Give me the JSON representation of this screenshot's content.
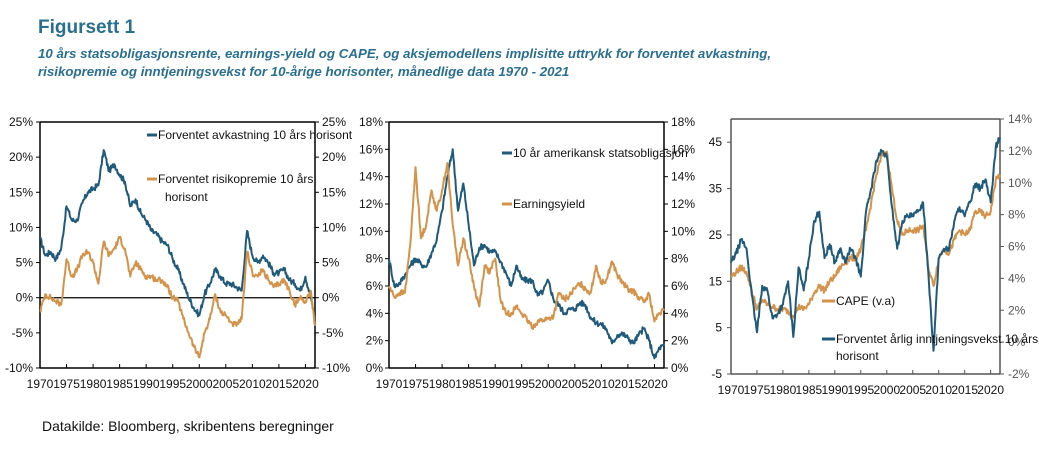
{
  "header": {
    "title": "Figursett 1",
    "subtitle_line1": "10 års statsobligasjonsrente, earnings-yield og CAPE, og aksjemodellens implisitte uttrykk for forventet avkastning,",
    "subtitle_line2": "risikopremie og inntjeningsvekst for 10-årige horisonter, månedlige data 1970 - 2021"
  },
  "footer": {
    "source": "Datakilde: Bloomberg, skribentens beregninger"
  },
  "colors": {
    "blue": "#1f5a7a",
    "orange": "#d4934a",
    "title": "#2a6f8f"
  },
  "chart_data": [
    {
      "type": "line",
      "title": "",
      "xlabel": "",
      "ylabel": "",
      "x_ticks": [
        "1970",
        "1975",
        "1980",
        "1985",
        "1990",
        "1995",
        "2000",
        "2005",
        "2010",
        "2015",
        "2020"
      ],
      "xlim": [
        1970,
        2021.8
      ],
      "ylim": [
        -10,
        25
      ],
      "y_ticks": [
        "25%",
        "20%",
        "15%",
        "10%",
        "5%",
        "0%",
        "-5%",
        "-10%"
      ],
      "y_ticks_right": [
        "25%",
        "20%",
        "15%",
        "10%",
        "5%",
        "0%",
        "-5%",
        "-10%"
      ],
      "zero_line": true,
      "legend": "top-right",
      "x": [
        1970,
        1971,
        1972,
        1973,
        1974,
        1975,
        1976,
        1977,
        1978,
        1979,
        1980,
        1981,
        1982,
        1983,
        1984,
        1985,
        1986,
        1987,
        1988,
        1989,
        1990,
        1991,
        1992,
        1993,
        1994,
        1995,
        1996,
        1997,
        1998,
        1999,
        2000,
        2001,
        2002,
        2003,
        2004,
        2005,
        2006,
        2007,
        2008,
        2009,
        2010,
        2011,
        2012,
        2013,
        2014,
        2015,
        2016,
        2017,
        2018,
        2019,
        2020,
        2021,
        2021.8
      ],
      "series": [
        {
          "name": "Forventet avkastning 10 års horisont",
          "color": "blue",
          "values": [
            8.5,
            6,
            6.5,
            5.5,
            7,
            13,
            11,
            11,
            13.5,
            15,
            15.5,
            16,
            21,
            18,
            19,
            17.5,
            16.5,
            13,
            14,
            12,
            11,
            9.5,
            9,
            8,
            7.5,
            5.5,
            4,
            2,
            0,
            -1.5,
            -2.5,
            0.5,
            2,
            4,
            3,
            2,
            2,
            1.5,
            1,
            9.5,
            6,
            5,
            6,
            5,
            3.5,
            3.5,
            4,
            2.5,
            2,
            1,
            3,
            0,
            -3
          ]
        },
        {
          "name": "Forventet risikopremie 10 års horisont",
          "color": "orange",
          "values": [
            -2,
            0.5,
            0,
            -0.5,
            -1,
            5.5,
            3,
            4,
            6,
            6.5,
            5,
            2,
            8,
            6,
            7,
            8.5,
            7,
            3,
            5,
            4,
            3,
            3,
            2.5,
            2.5,
            1.5,
            0,
            -0.5,
            -3,
            -5,
            -7,
            -8.5,
            -5,
            -3,
            0.5,
            -2,
            -2.5,
            -3.5,
            -4,
            -3,
            6.5,
            3.5,
            3,
            4,
            2.5,
            1.5,
            2,
            2.5,
            1,
            -1,
            0,
            -0.5,
            1,
            -4
          ]
        }
      ]
    },
    {
      "type": "line",
      "title": "",
      "xlabel": "",
      "ylabel": "",
      "x_ticks": [
        "1970",
        "1975",
        "1980",
        "1985",
        "1990",
        "1995",
        "2000",
        "2005",
        "2010",
        "2015",
        "2020"
      ],
      "xlim": [
        1970,
        2021.8
      ],
      "ylim": [
        0,
        18
      ],
      "y_ticks": [
        "18%",
        "16%",
        "14%",
        "12%",
        "10%",
        "8%",
        "6%",
        "4%",
        "2%",
        "0%"
      ],
      "y_ticks_right": [
        "18%",
        "16%",
        "14%",
        "12%",
        "10%",
        "8%",
        "6%",
        "4%",
        "2%",
        "0%"
      ],
      "legend": "top-right",
      "x": [
        1970,
        1971,
        1972,
        1973,
        1974,
        1975,
        1976,
        1977,
        1978,
        1979,
        1980,
        1981,
        1982,
        1983,
        1984,
        1985,
        1986,
        1987,
        1988,
        1989,
        1990,
        1991,
        1992,
        1993,
        1994,
        1995,
        1996,
        1997,
        1998,
        1999,
        2000,
        2001,
        2002,
        2003,
        2004,
        2005,
        2006,
        2007,
        2008,
        2009,
        2010,
        2011,
        2012,
        2013,
        2014,
        2015,
        2016,
        2017,
        2018,
        2019,
        2020,
        2021,
        2021.8
      ],
      "series": [
        {
          "name": "10 år amerikansk statsobligasjon",
          "color": "blue",
          "values": [
            8,
            6,
            6.2,
            6.8,
            7.5,
            8,
            7.6,
            7.4,
            8.4,
            9.4,
            11.5,
            14,
            16,
            11.5,
            13.5,
            10.5,
            7.5,
            8.8,
            9,
            8.5,
            8.5,
            7.8,
            7,
            6,
            7.5,
            6.5,
            6.4,
            6.4,
            5.3,
            5.6,
            6.4,
            5,
            4.6,
            4,
            4.3,
            4.3,
            4.8,
            4.6,
            3.7,
            3.3,
            3.2,
            2.8,
            1.8,
            2.4,
            2.5,
            2.2,
            1.8,
            2.4,
            2.9,
            2,
            0.7,
            1.5,
            1.6
          ]
        },
        {
          "name": "Earningsyield",
          "color": "orange",
          "values": [
            6,
            5.2,
            5.5,
            5.5,
            9,
            14.7,
            9.5,
            10.5,
            13,
            11.5,
            13,
            15,
            10.5,
            7.5,
            9.5,
            8,
            6,
            4.5,
            7.5,
            7,
            8,
            5,
            4,
            4,
            4.5,
            4,
            3.5,
            3,
            3.4,
            3.5,
            3.6,
            3.8,
            5.5,
            5,
            5.3,
            5.8,
            6.2,
            5.8,
            5.5,
            7.5,
            6.2,
            6.5,
            7.8,
            6.8,
            6.2,
            5.8,
            5.6,
            5.2,
            4.8,
            5.4,
            3.4,
            4,
            4.2
          ]
        }
      ]
    },
    {
      "type": "line",
      "title": "",
      "xlabel": "",
      "ylabel": "",
      "x_ticks": [
        "1970",
        "1975",
        "1980",
        "1985",
        "1990",
        "1995",
        "2000",
        "2005",
        "2010",
        "2015",
        "2020"
      ],
      "xlim": [
        1970,
        2021.8
      ],
      "ylim": [
        -5,
        50
      ],
      "y_ticks": [
        "45",
        "35",
        "25",
        "15",
        "5",
        "-5"
      ],
      "y_ticks_right": [
        "14%",
        "12%",
        "10%",
        "8%",
        "6%",
        "4%",
        "2%",
        "0%",
        "-2%"
      ],
      "ylim_right": [
        -2,
        14
      ],
      "legend": "bottom-center",
      "x": [
        1970,
        1971,
        1972,
        1973,
        1974,
        1975,
        1976,
        1977,
        1978,
        1979,
        1980,
        1981,
        1982,
        1983,
        1984,
        1985,
        1986,
        1987,
        1988,
        1989,
        1990,
        1991,
        1992,
        1993,
        1994,
        1995,
        1996,
        1997,
        1998,
        1999,
        2000,
        2001,
        2002,
        2003,
        2004,
        2005,
        2006,
        2007,
        2008,
        2009,
        2010,
        2011,
        2012,
        2013,
        2014,
        2015,
        2016,
        2017,
        2018,
        2019,
        2020,
        2021,
        2021.8
      ],
      "series": [
        {
          "name": "CAPE (v.a)",
          "color": "orange",
          "axis": "left",
          "values": [
            16,
            17,
            18,
            17,
            13,
            9,
            11,
            10,
            9.5,
            9,
            9,
            8.5,
            7.5,
            9.5,
            9,
            10,
            12.5,
            14,
            13,
            15,
            16,
            18,
            19,
            20,
            20,
            22,
            26,
            32,
            38,
            42,
            43,
            35,
            28,
            25,
            26,
            26,
            26,
            27,
            18,
            14,
            20,
            22,
            21,
            24,
            26,
            25,
            26,
            30,
            30,
            29,
            30,
            37,
            38
          ]
        },
        {
          "name": "Forventet årlig inntjeningsvekst 10 års horisont",
          "color": "blue",
          "axis": "left",
          "values": [
            19,
            21,
            24,
            22,
            12,
            4,
            14,
            13,
            7,
            8,
            10,
            15,
            3,
            18,
            13,
            20,
            28,
            30,
            20,
            23,
            19,
            22,
            19,
            22,
            20,
            16,
            30,
            35,
            41,
            43,
            42,
            31,
            22,
            28,
            29,
            29,
            30,
            32,
            17,
            0,
            20,
            22,
            22,
            28,
            31,
            29,
            32,
            36,
            35,
            37,
            32,
            44,
            46
          ]
        }
      ]
    }
  ]
}
